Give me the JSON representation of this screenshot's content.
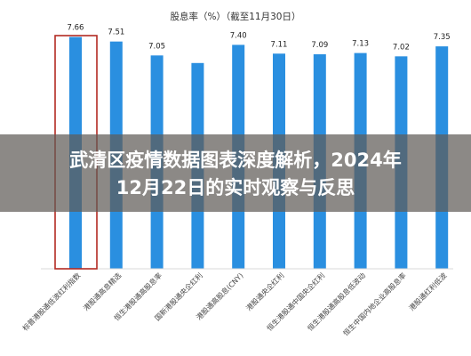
{
  "chart_data": {
    "type": "bar",
    "title": "股息率（%）（截至11月30日）",
    "categories": [
      "标普港股通低波红利指数",
      "港股通高息精选",
      "恒生港股通高股息率",
      "国新港股通央企红利",
      "港股通高股息(CNY)",
      "港股通央企红利",
      "恒生港股通中国央企红利",
      "恒生港股通高股息低波动",
      "恒生中国内地企业高股息率",
      "港股通红利低波"
    ],
    "values": [
      7.66,
      7.51,
      7.05,
      6.8,
      7.4,
      7.11,
      7.09,
      7.13,
      7.02,
      7.35
    ],
    "value_labels": [
      "7.66",
      "7.51",
      "7.05",
      "",
      "7.40",
      "7.11",
      "7.09",
      "7.13",
      "7.02",
      "7.35"
    ],
    "ylim": [
      0,
      8
    ],
    "grid": false,
    "bar_color": "#2a8fe0",
    "highlight_index": 0,
    "highlight_color": "#b22a22"
  },
  "overlay": {
    "line1": "武清区疫情数据图表深度解析，2024年",
    "line2": "12月22日的实时观察与反思",
    "color": "#ffffff"
  }
}
